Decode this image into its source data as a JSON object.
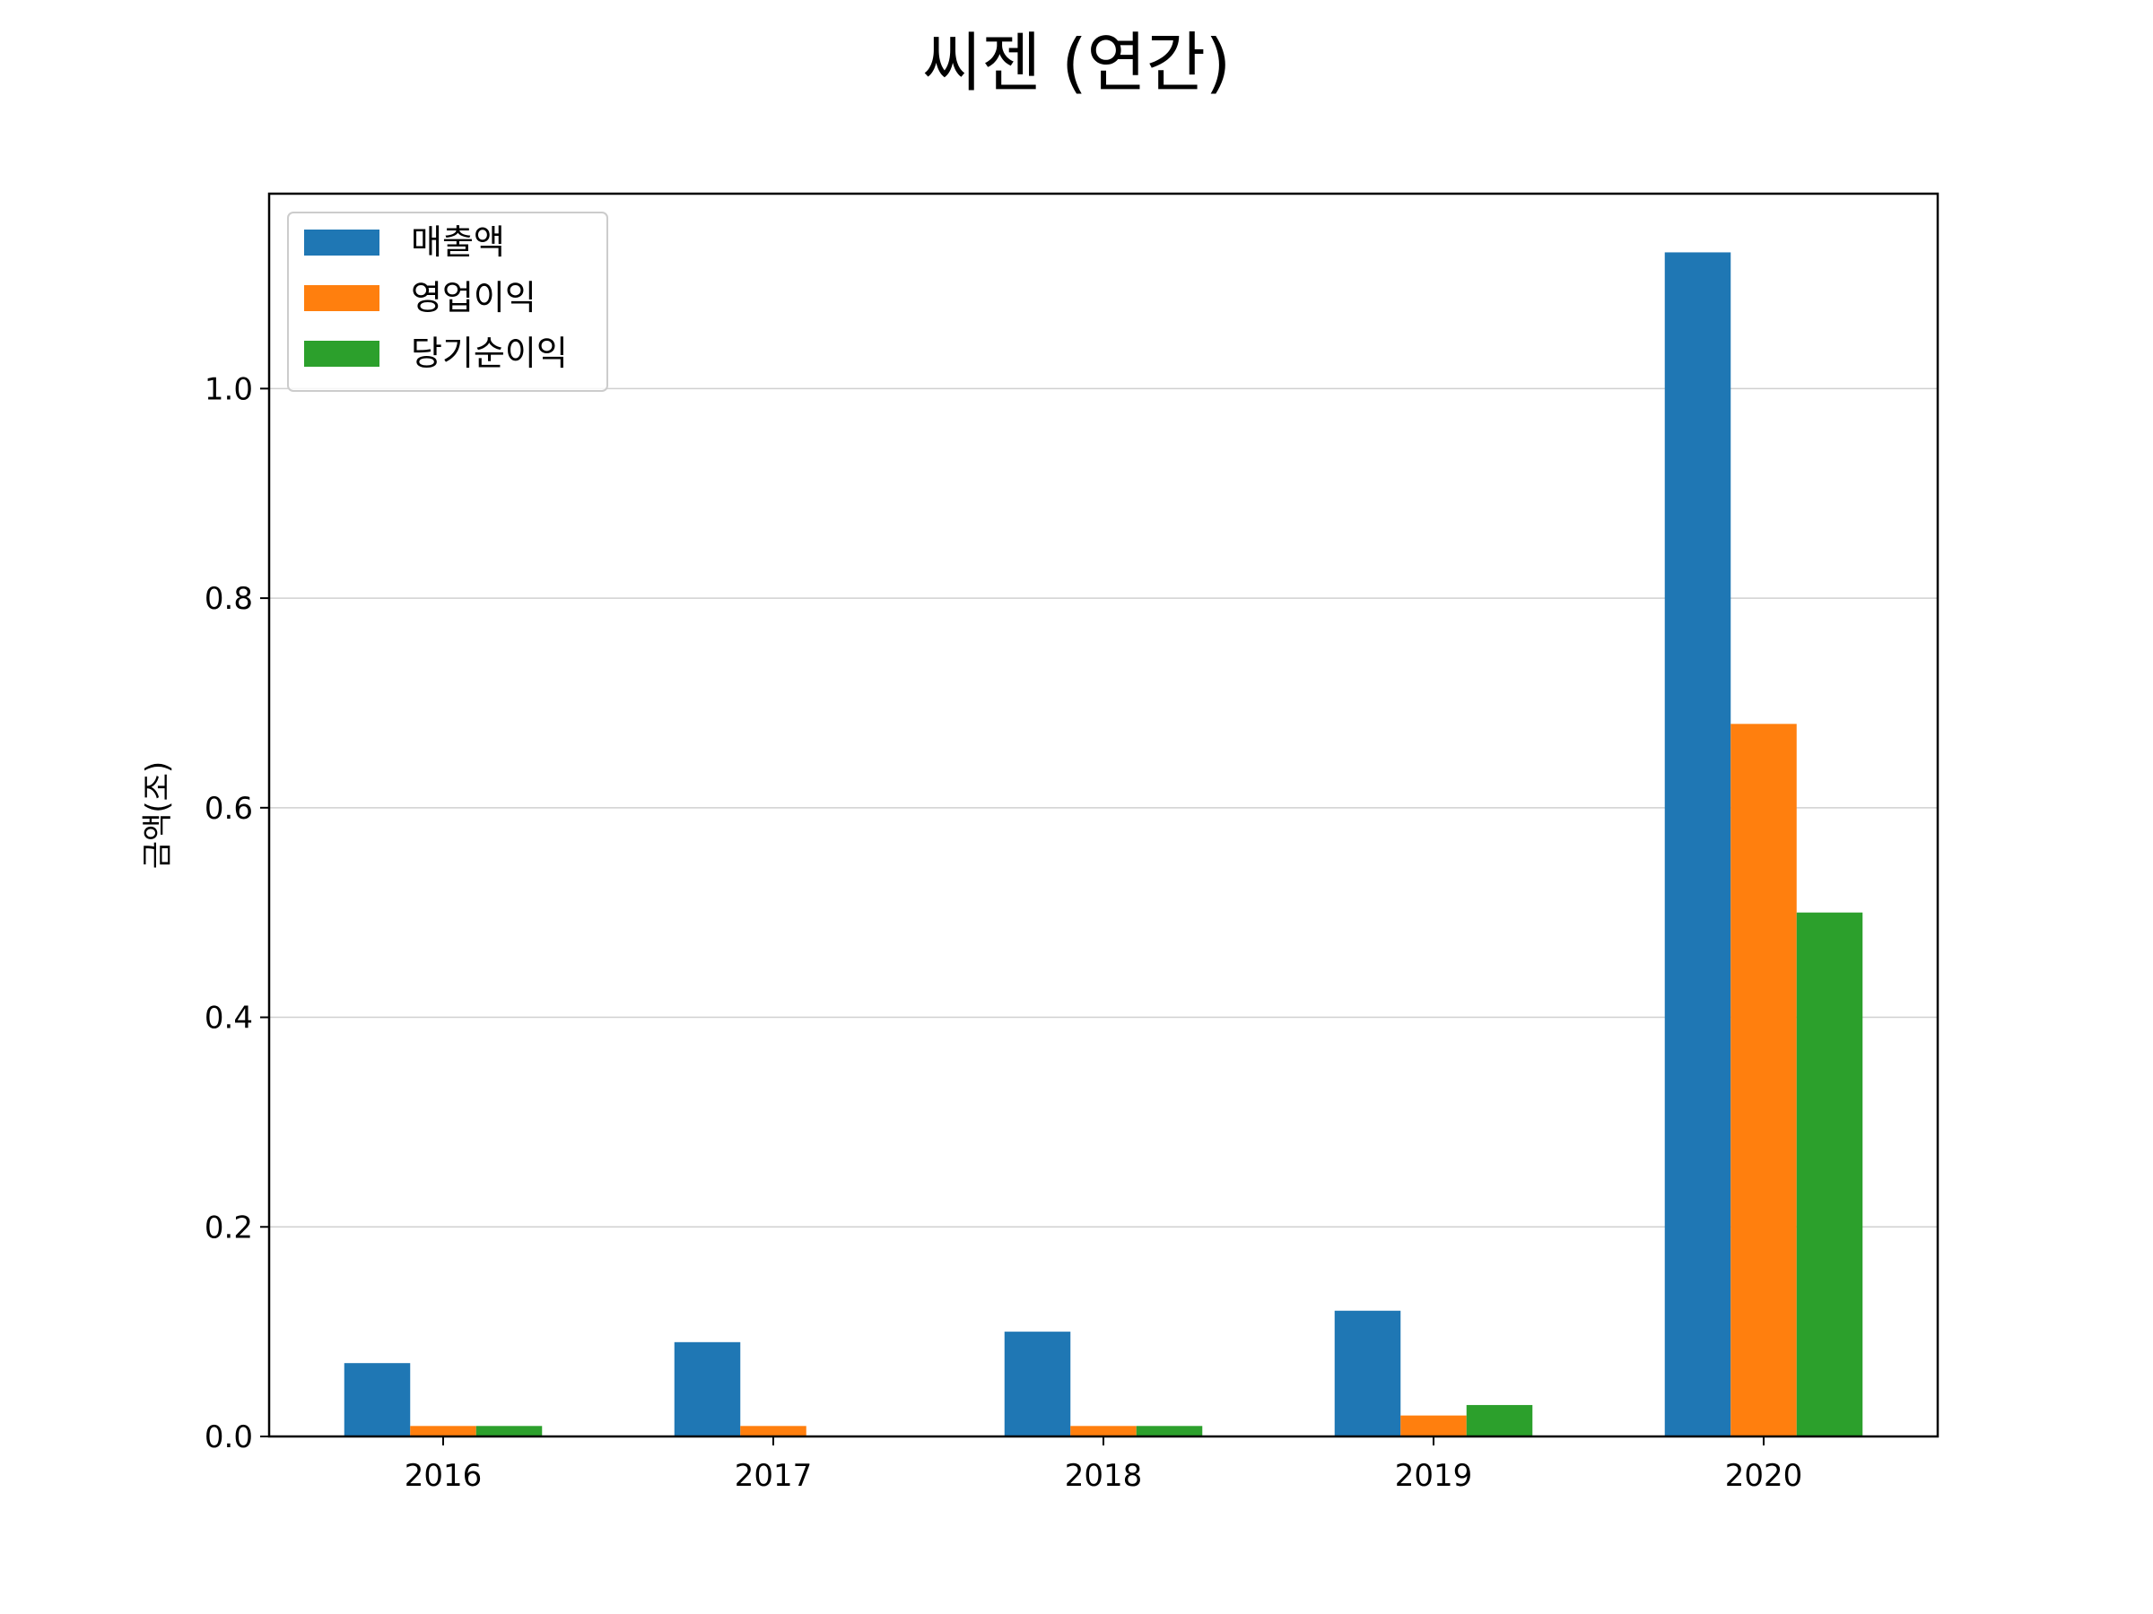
{
  "chart_data": {
    "type": "bar",
    "title": "씨젠 (연간)",
    "xlabel": "",
    "ylabel": "금액(조)",
    "categories": [
      "2016",
      "2017",
      "2018",
      "2019",
      "2020"
    ],
    "series": [
      {
        "name": "매출액",
        "color": "#1f77b4",
        "values": [
          0.07,
          0.09,
          0.1,
          0.12,
          1.13
        ]
      },
      {
        "name": "영업이익",
        "color": "#ff7f0e",
        "values": [
          0.01,
          0.01,
          0.01,
          0.02,
          0.68
        ]
      },
      {
        "name": "당기순이익",
        "color": "#2ca02c",
        "values": [
          0.01,
          0.0,
          0.01,
          0.03,
          0.5
        ]
      }
    ],
    "ylim": [
      0,
      1.186
    ],
    "yticks": [
      "0.0",
      "0.2",
      "0.4",
      "0.6",
      "0.8",
      "1.0"
    ],
    "grid": "y",
    "legend": "top-left"
  }
}
